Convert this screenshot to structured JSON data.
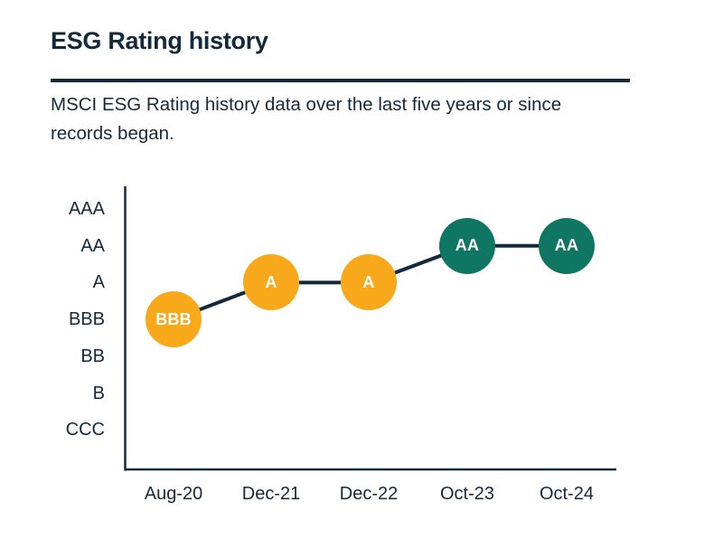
{
  "header": {
    "title": "ESG Rating history",
    "subtitle_line1": "MSCI ESG Rating history data over the last five years or since",
    "subtitle_line2": "records began."
  },
  "colors": {
    "navy": "#14293C",
    "point_yellow": "#F7A91B",
    "point_teal": "#0F7663",
    "point_label": "#FFFFFF",
    "background": "#FFFFFF"
  },
  "chart_data": {
    "type": "line",
    "title": "ESG Rating history",
    "x": [
      "Aug-20",
      "Dec-21",
      "Dec-22",
      "Oct-23",
      "Oct-24"
    ],
    "y_ticks_top_to_bottom": [
      "AAA",
      "AA",
      "A",
      "BBB",
      "BB",
      "B",
      "CCC"
    ],
    "series": [
      {
        "name": "MSCI ESG Rating",
        "values": [
          "BBB",
          "A",
          "A",
          "AA",
          "AA"
        ],
        "point_colors": [
          "#F7A91B",
          "#F7A91B",
          "#F7A91B",
          "#0F7663",
          "#0F7663"
        ]
      }
    ],
    "grid": false,
    "legend": false
  }
}
